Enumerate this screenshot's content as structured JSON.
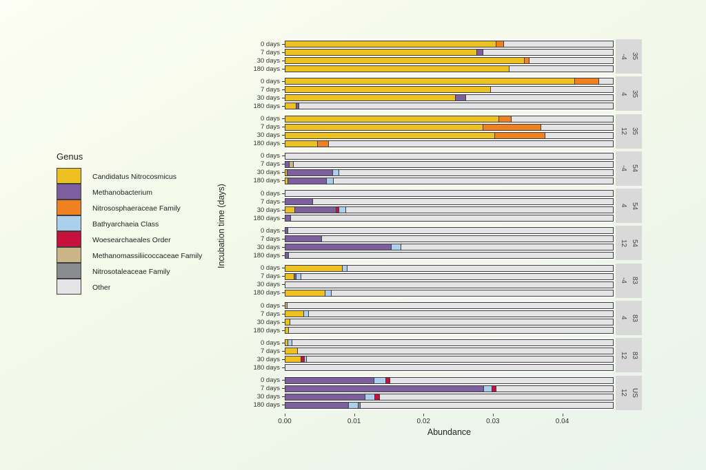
{
  "chart_data": {
    "type": "bar",
    "orientation": "horizontal",
    "stacked": true,
    "xlabel": "Abundance",
    "ylabel": "Incubation time (days)",
    "legend_title": "Genus",
    "legend_position": "left",
    "grid": false,
    "x_max": 0.0474,
    "bar_total": 0.0474,
    "x_ticks": [
      {
        "value": 0.0,
        "label": "0.00"
      },
      {
        "value": 0.01,
        "label": "0.01"
      },
      {
        "value": 0.02,
        "label": "0.02"
      },
      {
        "value": 0.03,
        "label": "0.03"
      },
      {
        "value": 0.04,
        "label": "0.04"
      }
    ],
    "row_categories": [
      "0 days",
      "7 days",
      "30 days",
      "180 days"
    ],
    "genera": [
      {
        "key": "candidatus",
        "label": "Candidatus Nitrocosmicus",
        "color": "#eec122"
      },
      {
        "key": "methanobacterium",
        "label": "Methanobacterium",
        "color": "#7d5fa0"
      },
      {
        "key": "nitrososphaeraceae",
        "label": "Nitrososphaeraceae Family",
        "color": "#ef8121"
      },
      {
        "key": "bathyarchaeia",
        "label": "Bathyarchaeia Class",
        "color": "#abd0ee"
      },
      {
        "key": "woesearchaeales",
        "label": "Woesearchaeales Order",
        "color": "#c8103c"
      },
      {
        "key": "methanomassiliicoccaceae",
        "label": "Methanomassiliicoccaceae Family",
        "color": "#c9b587"
      },
      {
        "key": "nitrosotaleaceae",
        "label": "Nitrosotaleaceae Family",
        "color": "#8a8d8f"
      },
      {
        "key": "other",
        "label": "Other",
        "color": "#e4e4e6"
      }
    ],
    "facets": [
      {
        "group": "35",
        "temp": "-4",
        "rows": [
          [
            [
              "candidatus",
              0.0305
            ],
            [
              "nitrososphaeraceae",
              0.0011
            ]
          ],
          [
            [
              "candidatus",
              0.0277
            ],
            [
              "methanobacterium",
              0.0009
            ]
          ],
          [
            [
              "candidatus",
              0.0346
            ],
            [
              "nitrososphaeraceae",
              0.0007
            ]
          ],
          [
            [
              "candidatus",
              0.0324
            ]
          ]
        ]
      },
      {
        "group": "35",
        "temp": "4",
        "rows": [
          [
            [
              "candidatus",
              0.0419
            ],
            [
              "nitrososphaeraceae",
              0.0035
            ]
          ],
          [
            [
              "candidatus",
              0.0297
            ]
          ],
          [
            [
              "candidatus",
              0.0246
            ],
            [
              "methanobacterium",
              0.0015
            ]
          ],
          [
            [
              "candidatus",
              0.0016
            ],
            [
              "methanobacterium",
              0.0004
            ]
          ]
        ]
      },
      {
        "group": "35",
        "temp": "12",
        "rows": [
          [
            [
              "candidatus",
              0.0309
            ],
            [
              "nitrososphaeraceae",
              0.0018
            ]
          ],
          [
            [
              "candidatus",
              0.0286
            ],
            [
              "nitrososphaeraceae",
              0.0084
            ]
          ],
          [
            [
              "candidatus",
              0.0303
            ],
            [
              "nitrososphaeraceae",
              0.0073
            ]
          ],
          [
            [
              "candidatus",
              0.0047
            ],
            [
              "nitrososphaeraceae",
              0.0016
            ]
          ]
        ]
      },
      {
        "group": "54",
        "temp": "-4",
        "rows": [
          [],
          [
            [
              "methanobacterium",
              0.0006
            ],
            [
              "methanomassiliicoccaceae",
              0.0006
            ]
          ],
          [
            [
              "candidatus",
              0.0003
            ],
            [
              "methanobacterium",
              0.0066
            ],
            [
              "bathyarchaeia",
              0.0009
            ]
          ],
          [
            [
              "candidatus",
              0.0004
            ],
            [
              "methanobacterium",
              0.0056
            ],
            [
              "bathyarchaeia",
              0.001
            ]
          ]
        ]
      },
      {
        "group": "54",
        "temp": "4",
        "rows": [
          [],
          [
            [
              "methanobacterium",
              0.004
            ]
          ],
          [
            [
              "candidatus",
              0.0014
            ],
            [
              "methanobacterium",
              0.006
            ],
            [
              "woesearchaeales",
              0.0004
            ],
            [
              "bathyarchaeia",
              0.001
            ]
          ],
          [
            [
              "methanobacterium",
              0.0008
            ]
          ]
        ]
      },
      {
        "group": "54",
        "temp": "12",
        "rows": [
          [
            [
              "methanobacterium",
              0.0004
            ]
          ],
          [
            [
              "methanobacterium",
              0.0053
            ]
          ],
          [
            [
              "methanobacterium",
              0.0154
            ],
            [
              "bathyarchaeia",
              0.0014
            ]
          ],
          [
            [
              "methanobacterium",
              0.0005
            ]
          ]
        ]
      },
      {
        "group": "83",
        "temp": "-4",
        "rows": [
          [
            [
              "candidatus",
              0.0083
            ],
            [
              "bathyarchaeia",
              0.0007
            ]
          ],
          [
            [
              "candidatus",
              0.0013
            ],
            [
              "methanobacterium",
              0.0003
            ],
            [
              "bathyarchaeia",
              0.0007
            ]
          ],
          [],
          [
            [
              "candidatus",
              0.0058
            ],
            [
              "bathyarchaeia",
              0.0009
            ]
          ]
        ]
      },
      {
        "group": "83",
        "temp": "4",
        "rows": [
          [
            [
              "methanomassiliicoccaceae",
              0.0003
            ]
          ],
          [
            [
              "candidatus",
              0.0027
            ],
            [
              "bathyarchaeia",
              0.0007
            ]
          ],
          [
            [
              "candidatus",
              0.0007
            ]
          ],
          [
            [
              "candidatus",
              0.0005
            ]
          ]
        ]
      },
      {
        "group": "83",
        "temp": "12",
        "rows": [
          [
            [
              "candidatus",
              0.0004
            ],
            [
              "bathyarchaeia",
              0.0006
            ]
          ],
          [
            [
              "candidatus",
              0.0018
            ]
          ],
          [
            [
              "candidatus",
              0.0023
            ],
            [
              "woesearchaeales",
              0.0005
            ],
            [
              "bathyarchaeia",
              0.0003
            ]
          ],
          []
        ]
      },
      {
        "group": "US",
        "temp": "12",
        "rows": [
          [
            [
              "methanobacterium",
              0.0129
            ],
            [
              "bathyarchaeia",
              0.0017
            ],
            [
              "woesearchaeales",
              0.0006
            ]
          ],
          [
            [
              "methanobacterium",
              0.0287
            ],
            [
              "bathyarchaeia",
              0.0012
            ],
            [
              "woesearchaeales",
              0.0006
            ]
          ],
          [
            [
              "methanobacterium",
              0.0116
            ],
            [
              "bathyarchaeia",
              0.0014
            ],
            [
              "woesearchaeales",
              0.0007
            ]
          ],
          [
            [
              "methanobacterium",
              0.0092
            ],
            [
              "bathyarchaeia",
              0.0014
            ],
            [
              "nitrosotaleaceae",
              0.0003
            ]
          ]
        ]
      }
    ]
  }
}
